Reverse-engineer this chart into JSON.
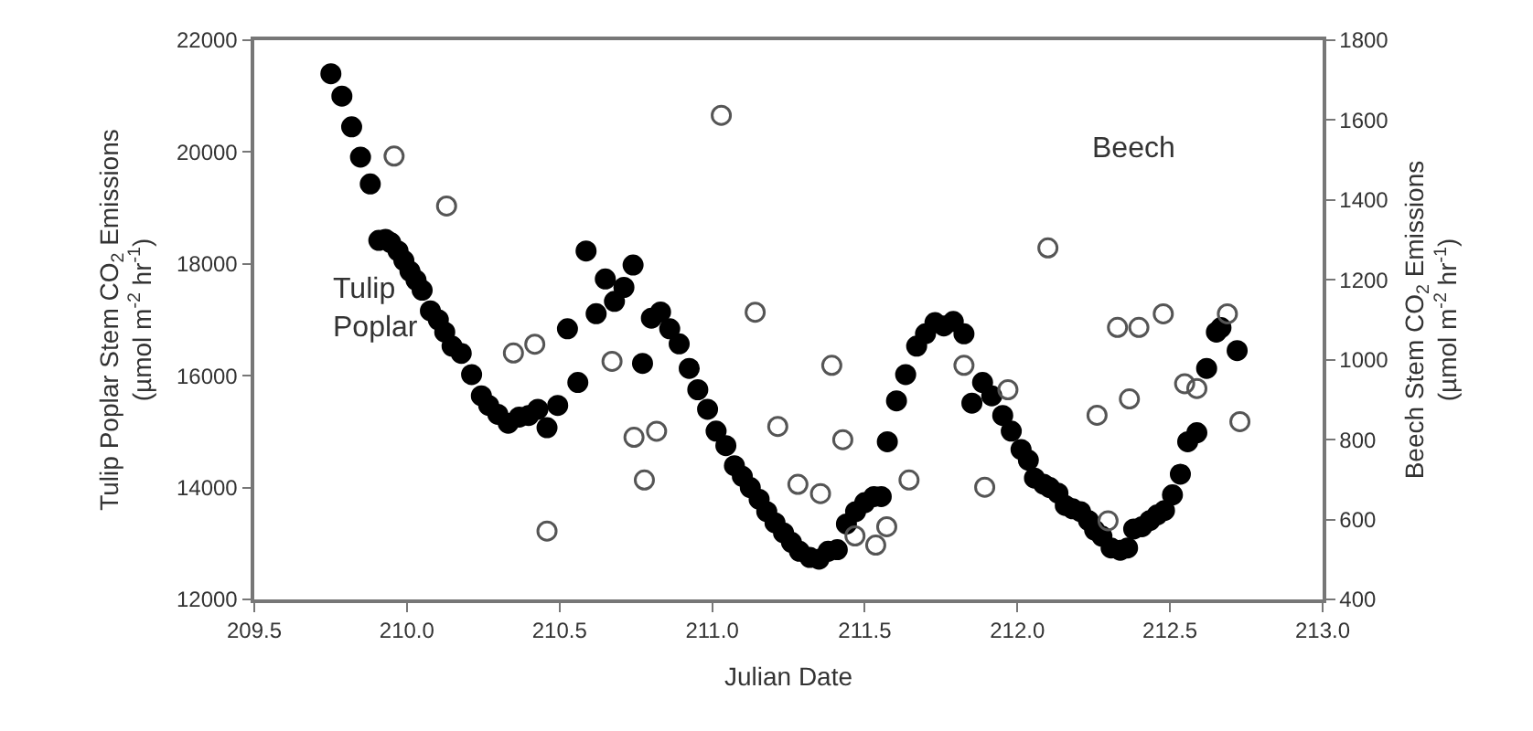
{
  "chart_data": {
    "type": "scatter",
    "xlabel": "Julian Date",
    "ylabel": "Tulip Poplar Stem CO$_{2}$ Emissions\n(µmol m$^{-2}$ hr$^{-1}$)",
    "y2label": "Beech Stem CO$_{2}$ Emissions\n(µmol m$^{-2}$ hr$^{-1}$)",
    "xlim": [
      209.5,
      213.0
    ],
    "xticks": [
      {
        "value": 209.5,
        "label": "209.5"
      },
      {
        "value": 210,
        "label": "210.0"
      },
      {
        "value": 210.5,
        "label": "210.5"
      },
      {
        "value": 211,
        "label": "211.0"
      },
      {
        "value": 211.5,
        "label": "211.5"
      },
      {
        "value": 212,
        "label": "212.0"
      },
      {
        "value": 212.5,
        "label": "212.5"
      },
      {
        "value": 213,
        "label": "213.0"
      }
    ],
    "ylim": [
      12000,
      22000
    ],
    "yticks": [
      12000,
      14000,
      16000,
      18000,
      20000,
      22000
    ],
    "y2lim": [
      400,
      1800
    ],
    "y2ticks": [
      400,
      600,
      800,
      1000,
      1200,
      1400,
      1600,
      1800
    ],
    "grid": false,
    "legend": false,
    "marker": "circle",
    "series": [
      {
        "name": "Tulip Poplar",
        "color": "#000000",
        "x": [
          209.751,
          209.787,
          209.819,
          209.848,
          209.88,
          209.908,
          209.93,
          209.947,
          209.971,
          209.99,
          210.01,
          210.03,
          210.05,
          210.077,
          210.103,
          210.124,
          210.148,
          210.178,
          210.212,
          210.244,
          210.268,
          210.298,
          210.332,
          210.368,
          210.399,
          210.429,
          210.459,
          210.494,
          210.526,
          210.56,
          210.587,
          210.62,
          210.65,
          210.68,
          210.711,
          210.741,
          210.772,
          210.801,
          210.831,
          210.861,
          210.892,
          210.925,
          210.953,
          210.985,
          211.013,
          211.045,
          211.073,
          211.099,
          211.125,
          211.154,
          211.179,
          211.206,
          211.234,
          211.26,
          211.286,
          211.32,
          211.35,
          211.38,
          211.41,
          211.44,
          211.47,
          211.5,
          211.53,
          211.554,
          211.574,
          211.604,
          211.634,
          211.67,
          211.699,
          211.73,
          211.759,
          211.79,
          211.825,
          211.851,
          211.886,
          211.916,
          211.952,
          211.98,
          212.012,
          212.036,
          212.056,
          212.086,
          212.106,
          212.133,
          212.157,
          212.181,
          212.207,
          212.233,
          212.253,
          212.277,
          212.307,
          212.337,
          212.361,
          212.381,
          212.408,
          212.434,
          212.458,
          212.482,
          212.508,
          212.534,
          212.558,
          212.588,
          212.62,
          212.652,
          212.667,
          212.72
        ],
        "values": [
          21400,
          21000,
          20450,
          19910,
          19430,
          18420,
          18440,
          18380,
          18230,
          18060,
          17870,
          17710,
          17530,
          17160,
          17000,
          16780,
          16530,
          16400,
          16020,
          15640,
          15470,
          15310,
          15150,
          15260,
          15290,
          15400,
          15070,
          15470,
          16840,
          15880,
          18230,
          17110,
          17730,
          17330,
          17580,
          17980,
          16220,
          17030,
          17140,
          16840,
          16570,
          16130,
          15750,
          15400,
          15010,
          14750,
          14390,
          14200,
          14000,
          13790,
          13570,
          13370,
          13190,
          13020,
          12860,
          12750,
          12720,
          12860,
          12890,
          13350,
          13570,
          13730,
          13840,
          13840,
          14820,
          15550,
          16020,
          16530,
          16750,
          16950,
          16890,
          16970,
          16750,
          15510,
          15880,
          15640,
          15290,
          15010,
          14680,
          14490,
          14170,
          14060,
          14000,
          13900,
          13680,
          13620,
          13570,
          13410,
          13240,
          13130,
          12920,
          12880,
          12920,
          13260,
          13300,
          13410,
          13510,
          13590,
          13870,
          14240,
          14820,
          14980,
          16130,
          16780,
          16860,
          16450
        ]
      },
      {
        "name": "Beech",
        "color": "#555555",
        "axis": "y2",
        "x": [
          209.958,
          210.13,
          210.349,
          210.419,
          210.459,
          210.672,
          210.744,
          210.778,
          210.818,
          211.03,
          211.141,
          211.215,
          211.281,
          211.355,
          211.392,
          211.428,
          211.468,
          211.536,
          211.572,
          211.645,
          211.825,
          211.893,
          211.969,
          212.1,
          212.261,
          212.297,
          212.328,
          212.367,
          212.398,
          212.478,
          212.548,
          212.588,
          212.688,
          212.729
        ],
        "values": [
          1510,
          1385,
          1017,
          1039,
          571,
          996,
          806,
          699,
          821,
          1612,
          1119,
          833,
          688,
          665,
          986,
          800,
          559,
          536,
          582,
          699,
          986,
          681,
          925,
          1280,
          861,
          597,
          1081,
          902,
          1081,
          1115,
          940,
          928,
          1115,
          845
        ]
      }
    ]
  }
}
